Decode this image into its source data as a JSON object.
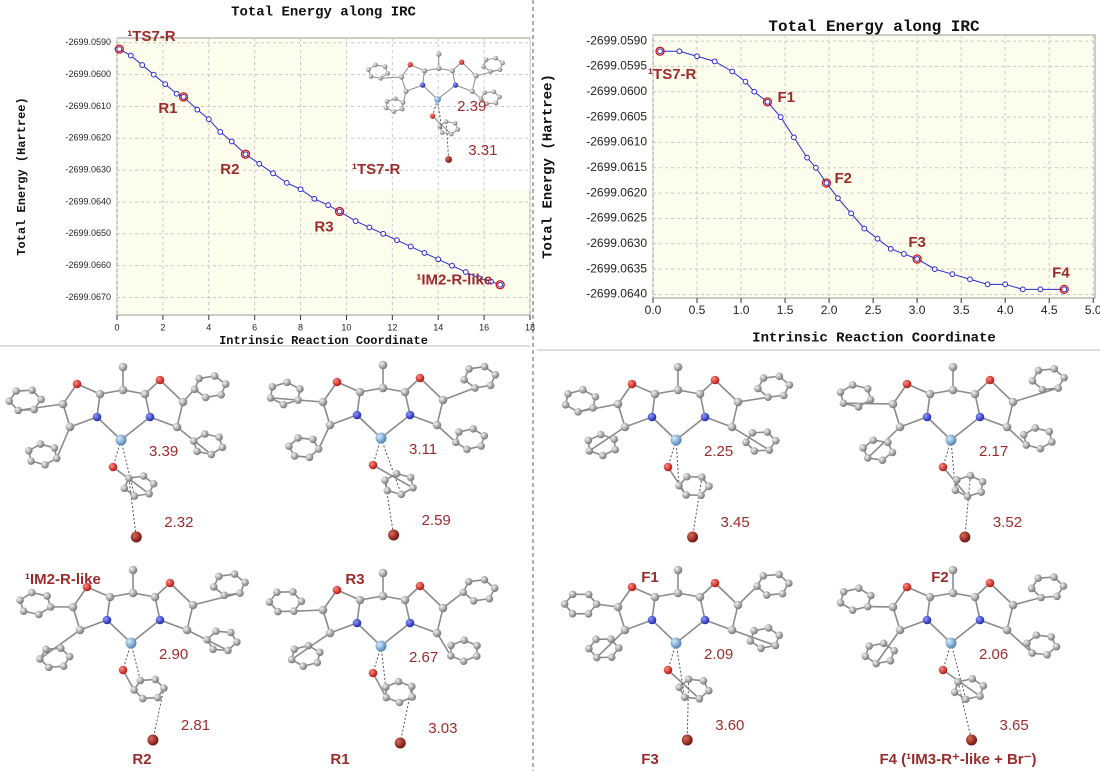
{
  "chart_data": [
    {
      "type": "line",
      "title": "Total Energy along IRC",
      "xlabel": "Intrinsic Reaction Coordinate",
      "ylabel": "Total Energy (Hartree)",
      "color": "#2a2ad0",
      "x": [
        0.1,
        0.6,
        1.1,
        1.6,
        2.1,
        2.6,
        2.9,
        3.5,
        4.0,
        4.5,
        5.0,
        5.6,
        6.2,
        6.8,
        7.4,
        8.0,
        8.6,
        9.2,
        9.7,
        10.4,
        11.0,
        11.6,
        12.2,
        12.8,
        13.4,
        14.0,
        14.6,
        15.2,
        15.8,
        16.3,
        16.7
      ],
      "values": [
        -2699.0592,
        -2699.0594,
        -2699.0597,
        -2699.06,
        -2699.0603,
        -2699.0606,
        -2699.0607,
        -2699.0611,
        -2699.0614,
        -2699.0618,
        -2699.0621,
        -2699.0625,
        -2699.0628,
        -2699.0631,
        -2699.0634,
        -2699.0636,
        -2699.0639,
        -2699.0641,
        -2699.0643,
        -2699.0646,
        -2699.0648,
        -2699.065,
        -2699.0652,
        -2699.0654,
        -2699.0656,
        -2699.0658,
        -2699.066,
        -2699.0662,
        -2699.0664,
        -2699.0665,
        -2699.0666
      ],
      "xlim": [
        0,
        18
      ],
      "xticks": [
        0,
        2,
        4,
        6,
        8,
        10,
        12,
        14,
        16,
        18
      ],
      "ylim": [
        -2699.06755,
        -2699.05885
      ],
      "yticks": [
        {
          "value": -2699.059,
          "label": "-2699.0590"
        },
        {
          "value": -2699.06,
          "label": "-2699.0600"
        },
        {
          "value": -2699.061,
          "label": "-2699.0610"
        },
        {
          "value": -2699.062,
          "label": "-2699.0620"
        },
        {
          "value": -2699.063,
          "label": "-2699.0630"
        },
        {
          "value": -2699.064,
          "label": "-2699.0640"
        },
        {
          "value": -2699.065,
          "label": "-2699.0650"
        },
        {
          "value": -2699.066,
          "label": "-2699.0660"
        },
        {
          "value": -2699.067,
          "label": "-2699.0670"
        }
      ],
      "grid": true,
      "annotations": [
        {
          "text": "¹TS7-R",
          "x": 0.1,
          "y": -2699.0592
        },
        {
          "text": "R1",
          "x": 2.9,
          "y": -2699.0607
        },
        {
          "text": "R2",
          "x": 5.6,
          "y": -2699.0625
        },
        {
          "text": "R3",
          "x": 9.7,
          "y": -2699.0643
        },
        {
          "text": "¹IM2-R-like",
          "x": 16.7,
          "y": -2699.0666
        }
      ]
    },
    {
      "type": "line",
      "title": "Total Energy along IRC",
      "xlabel": "Intrinsic Reaction Coordinate",
      "ylabel": "Total Energy (Hartree)",
      "color": "#2a2ad0",
      "x": [
        0.08,
        0.3,
        0.5,
        0.7,
        0.9,
        1.05,
        1.15,
        1.3,
        1.45,
        1.6,
        1.75,
        1.85,
        1.97,
        2.1,
        2.25,
        2.4,
        2.55,
        2.7,
        2.85,
        3.0,
        3.2,
        3.4,
        3.6,
        3.8,
        4.0,
        4.2,
        4.4,
        4.67
      ],
      "values": [
        -2699.0592,
        -2699.0592,
        -2699.0593,
        -2699.0594,
        -2699.0596,
        -2699.0598,
        -2699.06,
        -2699.0602,
        -2699.0605,
        -2699.0609,
        -2699.0613,
        -2699.0615,
        -2699.0618,
        -2699.0621,
        -2699.0624,
        -2699.0627,
        -2699.0629,
        -2699.0631,
        -2699.0632,
        -2699.0633,
        -2699.0635,
        -2699.0636,
        -2699.0637,
        -2699.0638,
        -2699.0638,
        -2699.0639,
        -2699.0639,
        -2699.0639
      ],
      "xlim": [
        0,
        5.02
      ],
      "xticks": [
        {
          "value": 0,
          "label": "0.0"
        },
        0.5,
        {
          "value": 1,
          "label": "1.0"
        },
        1.5,
        {
          "value": 2,
          "label": "2.0"
        },
        2.5,
        {
          "value": 3,
          "label": "3.0"
        },
        3.5,
        {
          "value": 4,
          "label": "4.0"
        },
        4.5,
        {
          "value": 5,
          "label": "5.0"
        }
      ],
      "ylim": [
        -2699.06407,
        -2699.05888
      ],
      "yticks": [
        {
          "value": -2699.059,
          "label": "-2699.0590"
        },
        -2699.0595,
        {
          "value": -2699.06,
          "label": "-2699.0600"
        },
        -2699.0605,
        {
          "value": -2699.061,
          "label": "-2699.0610"
        },
        -2699.0615,
        {
          "value": -2699.062,
          "label": "-2699.0620"
        },
        -2699.0625,
        {
          "value": -2699.063,
          "label": "-2699.0630"
        },
        -2699.0635,
        {
          "value": -2699.064,
          "label": "-2699.0640"
        }
      ],
      "grid": true,
      "annotations": [
        {
          "text": "¹TS7-R",
          "x": 0.08,
          "y": -2699.0592
        },
        {
          "text": "F1",
          "x": 1.3,
          "y": -2699.0602
        },
        {
          "text": "F2",
          "x": 1.97,
          "y": -2699.0618
        },
        {
          "text": "F3",
          "x": 3.0,
          "y": -2699.0633
        },
        {
          "text": "F4",
          "x": 4.67,
          "y": -2699.0639
        }
      ]
    }
  ],
  "structures": [
    {
      "label": "¹TS7-R",
      "distances": [
        "2.39",
        "3.31"
      ]
    },
    {
      "label": "¹IM2-R-like",
      "distances": [
        "3.39",
        "2.32"
      ]
    },
    {
      "label": "R3",
      "distances": [
        "3.11",
        "2.59"
      ]
    },
    {
      "label": "R2",
      "distances": [
        "2.90",
        "2.81"
      ]
    },
    {
      "label": "R1",
      "distances": [
        "2.67",
        "3.03"
      ]
    },
    {
      "label": "F1",
      "distances": [
        "2.25",
        "3.45"
      ]
    },
    {
      "label": "F2",
      "distances": [
        "2.17",
        "3.52"
      ]
    },
    {
      "label": "F3",
      "distances": [
        "2.09",
        "3.60"
      ]
    },
    {
      "label": "F4 (¹IM3-R⁺-like + Br⁻)",
      "distances": [
        "2.06",
        "3.65"
      ]
    }
  ]
}
